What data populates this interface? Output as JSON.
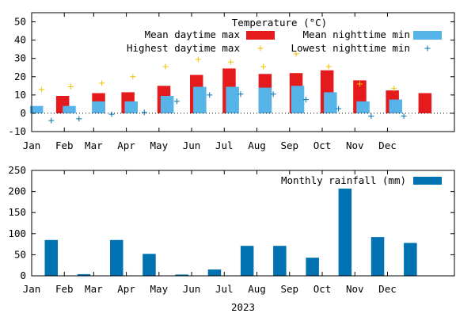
{
  "chart_data": [
    {
      "type": "bar",
      "title": "Temperature (°C)",
      "ylim": [
        -10,
        55
      ],
      "yticks": [
        "-10",
        "0",
        "10",
        "20",
        "30",
        "40",
        "50"
      ],
      "grid": false,
      "legend_position": "top-right",
      "months": [
        "Jan",
        "Feb",
        "Mar",
        "Apr",
        "May",
        "Jun",
        "Jul",
        "Aug",
        "Sep",
        "Oct",
        "Nov",
        "Dec"
      ],
      "series": [
        {
          "name": "Mean daytime max",
          "kind": "bar",
          "color": "#e41a1c",
          "x": [
            -0.15,
            0.95,
            1.85,
            2.95,
            3.95,
            4.95,
            6.05,
            7.0,
            7.95,
            8.95,
            9.95,
            10.95
          ],
          "values": [
            9.5,
            11,
            11.5,
            15,
            21,
            24.5,
            21.5,
            22,
            23.5,
            18,
            12.5,
            11
          ]
        },
        {
          "name": "Mean nighttime min",
          "kind": "bar",
          "color": "#56b4e9",
          "x": [
            -0.95,
            0.05,
            0.95,
            1.95,
            3.05,
            4.05,
            5.05,
            6.05,
            7.05,
            8.05,
            9.05,
            10.05
          ],
          "values": [
            4,
            4,
            6.5,
            6.5,
            9.5,
            14.5,
            14.5,
            14,
            15,
            11.5,
            6.5,
            7.5
          ]
        },
        {
          "name": "Highest daytime max",
          "kind": "point",
          "marker": "plus",
          "color": "#f0c000",
          "x": [
            -0.8,
            0.1,
            1.05,
            2.0,
            3.0,
            4.0,
            5.0,
            6.0,
            7.0,
            8.0,
            8.95,
            10.0
          ],
          "values": [
            13,
            14.5,
            16.5,
            20,
            25.5,
            29.5,
            28,
            25.5,
            32.5,
            25.5,
            16,
            13.5
          ]
        },
        {
          "name": "Lowest nighttime min",
          "kind": "point",
          "marker": "plus",
          "color": "#0072b2",
          "x": [
            -0.5,
            0.35,
            1.35,
            2.35,
            3.35,
            4.35,
            5.3,
            6.3,
            7.3,
            8.3,
            9.3,
            10.3
          ],
          "values": [
            -4,
            -3,
            -0.5,
            0.5,
            6.5,
            10,
            10.5,
            10.5,
            7.5,
            2.5,
            -1.5,
            -1.5
          ]
        }
      ]
    },
    {
      "type": "bar",
      "title": "",
      "xlabel": "2023",
      "ylim": [
        0,
        250
      ],
      "yticks": [
        "0",
        "50",
        "100",
        "150",
        "200",
        "250"
      ],
      "grid": false,
      "legend_position": "top-right",
      "months": [
        "Jan",
        "Feb",
        "Mar",
        "Apr",
        "May",
        "Jun",
        "Jul",
        "Aug",
        "Sep",
        "Oct",
        "Nov",
        "Dec"
      ],
      "series": [
        {
          "name": "Monthly rainfall (mm)",
          "kind": "bar",
          "color": "#0072b2",
          "x": [
            -0.5,
            0.5,
            1.5,
            2.5,
            3.5,
            4.5,
            5.5,
            6.5,
            7.5,
            8.5,
            9.5,
            10.5
          ],
          "values": [
            85,
            4,
            85,
            52,
            3,
            15,
            71,
            71,
            43,
            207,
            92,
            78
          ]
        }
      ]
    }
  ]
}
